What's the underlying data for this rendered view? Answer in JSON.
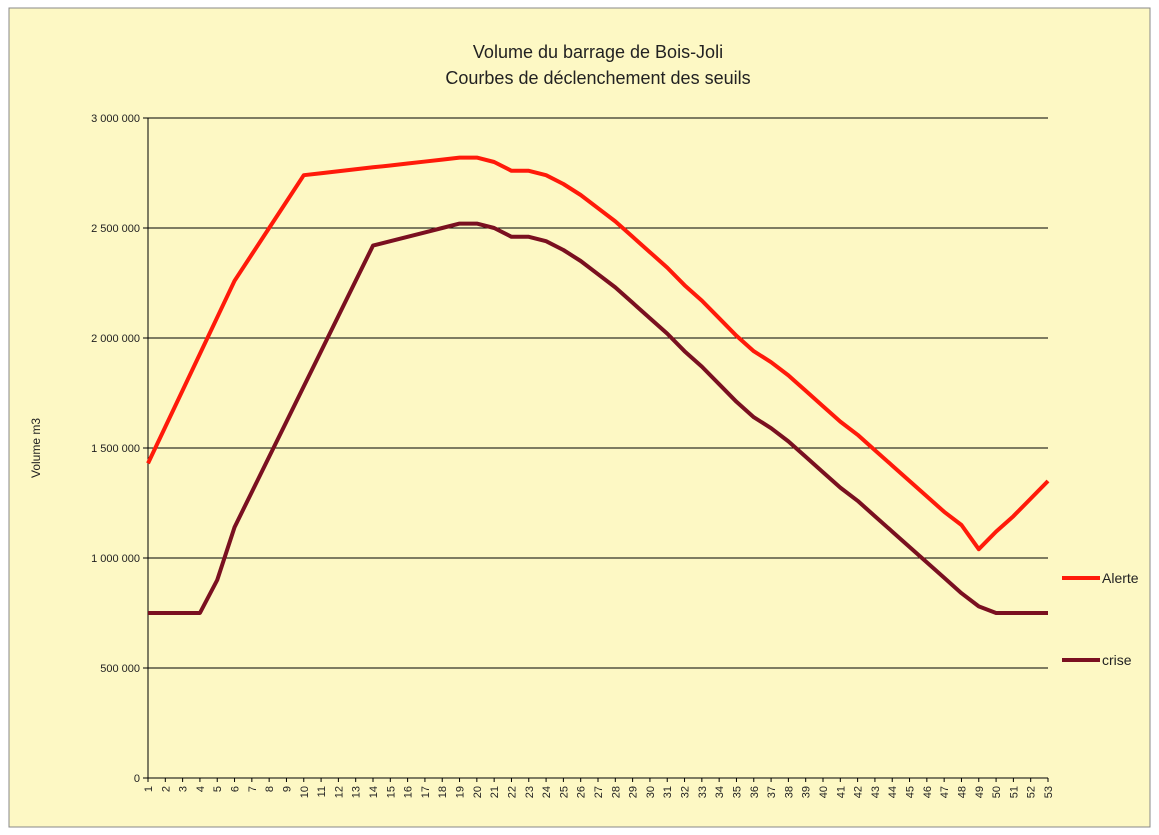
{
  "chart_data": {
    "type": "line",
    "title": "Volume du barrage de Bois-Joli",
    "subtitle": "Courbes de déclenchement des seuils",
    "y_label": "Volume m3",
    "categories": [
      "1",
      "2",
      "3",
      "4",
      "5",
      "6",
      "7",
      "8",
      "9",
      "10",
      "11",
      "12",
      "13",
      "14",
      "15",
      "16",
      "17",
      "18",
      "19",
      "20",
      "21",
      "22",
      "23",
      "24",
      "25",
      "26",
      "27",
      "28",
      "29",
      "30",
      "31",
      "32",
      "33",
      "34",
      "35",
      "36",
      "37",
      "38",
      "39",
      "40",
      "41",
      "42",
      "43",
      "44",
      "45",
      "46",
      "47",
      "48",
      "49",
      "50",
      "51",
      "52",
      "53"
    ],
    "series": [
      {
        "name": "Alerte",
        "color": "#ff1a0a",
        "values": [
          1430000,
          1596000,
          1762000,
          1928000,
          2094000,
          2260000,
          2380000,
          2500000,
          2620000,
          2740000,
          2749000,
          2758000,
          2767000,
          2776000,
          2784000,
          2793000,
          2802000,
          2811000,
          2820000,
          2820000,
          2800000,
          2760000,
          2760000,
          2740000,
          2700000,
          2650000,
          2590000,
          2530000,
          2460000,
          2390000,
          2320000,
          2240000,
          2170000,
          2090000,
          2010000,
          1940000,
          1890000,
          1830000,
          1760000,
          1690000,
          1620000,
          1560000,
          1490000,
          1420000,
          1350000,
          1280000,
          1210000,
          1150000,
          1040000,
          1120000,
          1190000,
          1270000,
          1350000
        ]
      },
      {
        "name": "crise",
        "color": "#7a1020",
        "values": [
          750000,
          750000,
          750000,
          750000,
          900000,
          1140000,
          1300000,
          1460000,
          1620000,
          1780000,
          1940000,
          2100000,
          2260000,
          2420000,
          2440000,
          2460000,
          2480000,
          2500000,
          2520000,
          2520000,
          2500000,
          2460000,
          2460000,
          2440000,
          2400000,
          2350000,
          2290000,
          2230000,
          2160000,
          2090000,
          2020000,
          1940000,
          1870000,
          1790000,
          1710000,
          1640000,
          1590000,
          1530000,
          1460000,
          1390000,
          1320000,
          1260000,
          1190000,
          1120000,
          1050000,
          980000,
          910000,
          840000,
          780000,
          750000,
          750000,
          750000,
          750000
        ]
      }
    ],
    "ylim": [
      0,
      3000000
    ],
    "yticks": [
      0,
      {
        "value": 500000,
        "label": "500 000"
      },
      {
        "value": 1000000,
        "label": "1 000 000"
      },
      {
        "value": 1500000,
        "label": "1 500 000"
      },
      {
        "value": 2000000,
        "label": "2 000 000"
      },
      {
        "value": 2500000,
        "label": "2 500 000"
      },
      {
        "value": 3000000,
        "label": "3 000 000"
      }
    ],
    "grid": true,
    "legend": "right"
  }
}
